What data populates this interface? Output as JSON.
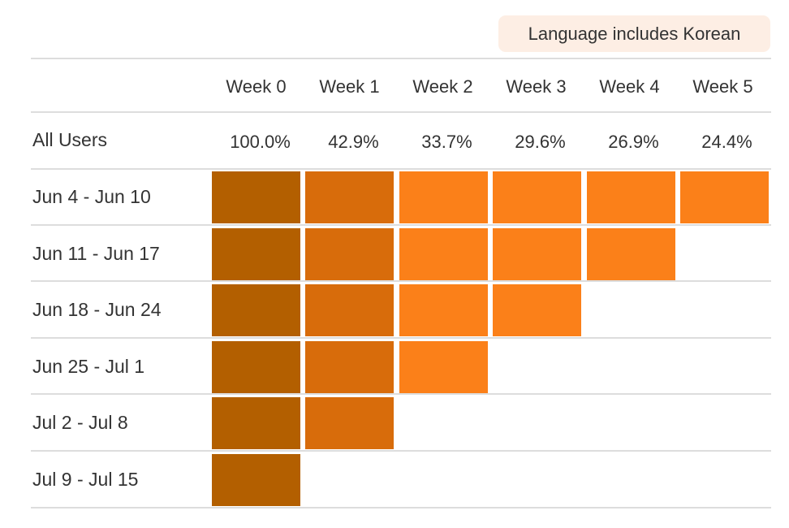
{
  "filter": {
    "label": "Language includes Korean",
    "background": "#fdeee4"
  },
  "chart_data": {
    "type": "table",
    "columns": [
      "Week 0",
      "Week 1",
      "Week 2",
      "Week 3",
      "Week 4",
      "Week 5"
    ],
    "summary": {
      "label": "All Users",
      "values": [
        "100.0%",
        "42.9%",
        "33.7%",
        "29.6%",
        "26.9%",
        "24.4%"
      ]
    },
    "rows": [
      {
        "label": "Jun 4 - Jun 10",
        "weeks": 6
      },
      {
        "label": "Jun 11 - Jun 17",
        "weeks": 5
      },
      {
        "label": "Jun 18 - Jun 24",
        "weeks": 4
      },
      {
        "label": "Jun 25 - Jul 1",
        "weeks": 3
      },
      {
        "label": "Jul 2 - Jul 8",
        "weeks": 2
      },
      {
        "label": "Jul 9 - Jul 15",
        "weeks": 1
      }
    ],
    "colors": {
      "week0": "#b35f00",
      "week1": "#d86c0b",
      "later": "#fb8019",
      "grid": "#dddddd",
      "text": "#333333"
    }
  }
}
